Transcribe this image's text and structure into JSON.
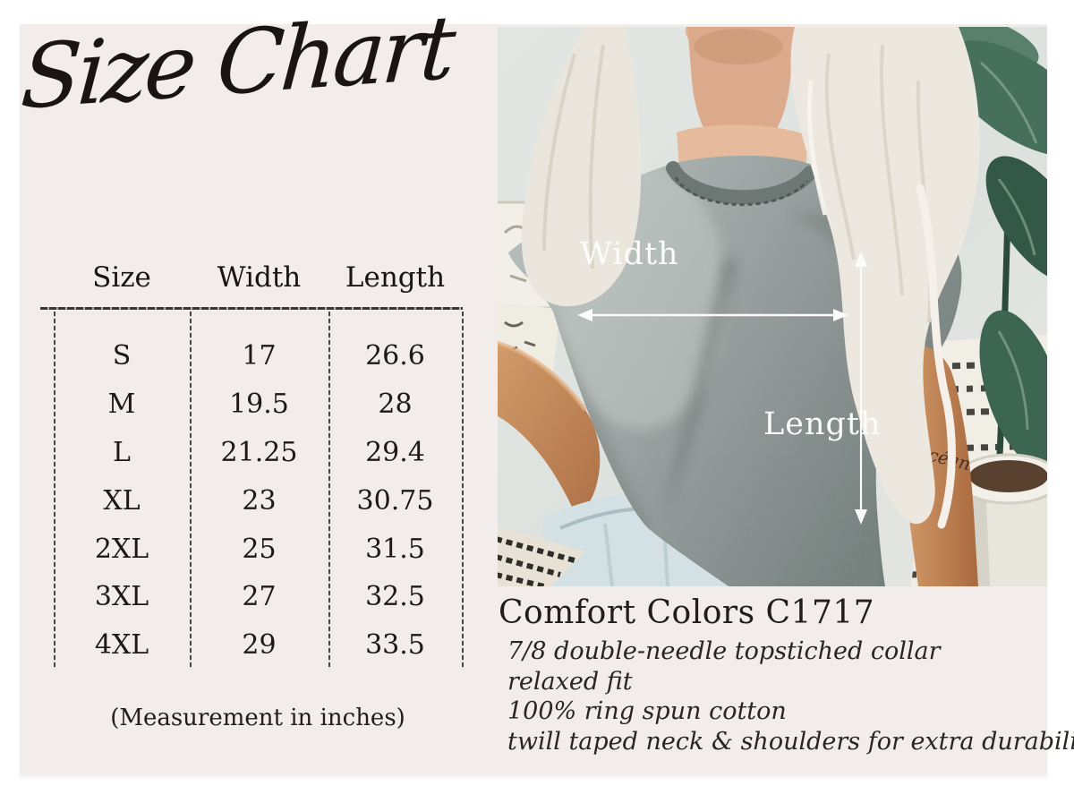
{
  "title": "Size Chart",
  "size_table": {
    "columns": [
      "Size",
      "Width",
      "Length"
    ],
    "rows": [
      [
        "S",
        "17",
        "26.6"
      ],
      [
        "M",
        "19.5",
        "28"
      ],
      [
        "L",
        "21.25",
        "29.4"
      ],
      [
        "XL",
        "23",
        "30.75"
      ],
      [
        "2XL",
        "25",
        "31.5"
      ],
      [
        "3XL",
        "27",
        "32.5"
      ],
      [
        "4XL",
        "29",
        "33.5"
      ]
    ],
    "note": "(Measurement in inches)"
  },
  "photo": {
    "width_label": "Width",
    "length_label": "Length",
    "tattoo_text": "Océan"
  },
  "product": {
    "heading": "Comfort Colors C1717",
    "details": [
      "7/8 double-needle topstiched collar",
      "relaxed fit",
      "100% ring spun cotton",
      "twill taped neck & shoulders for extra durability"
    ]
  },
  "colors": {
    "frame": "#ffffff",
    "panel": "#f2edea",
    "ink": "#1c1917",
    "photo_wall": "#dde2de",
    "tee_gray": "#97a09e",
    "annotation_white": "#fcfcfa"
  }
}
